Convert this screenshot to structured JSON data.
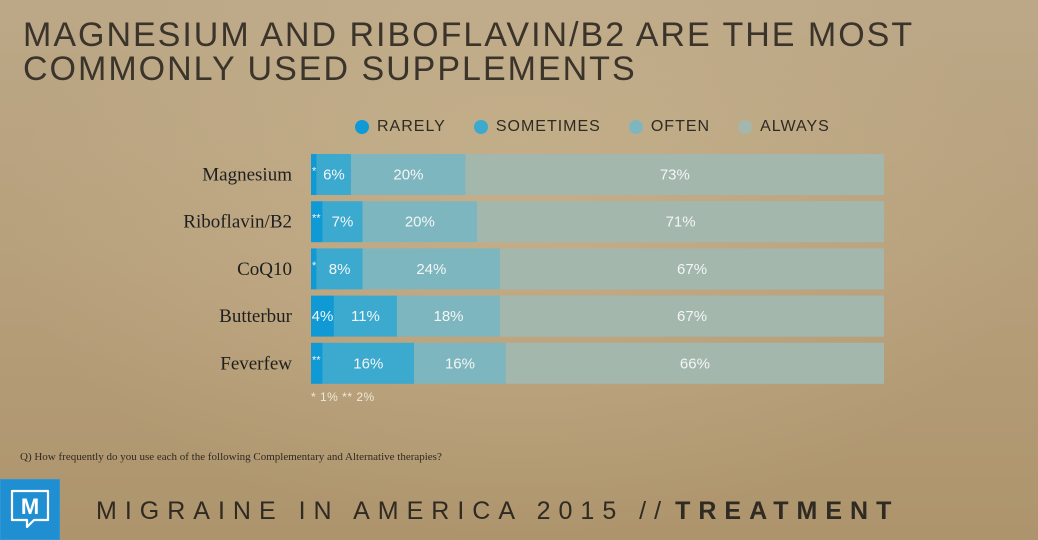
{
  "title": {
    "line1": "MAGNESIUM AND RIBOFLAVIN/B2 ARE THE MOST",
    "line2": "COMMONLY USED SUPPLEMENTS"
  },
  "colors": {
    "rarely": "#0f9ad6",
    "sometimes": "#3ca9cf",
    "often": "#7eb6bf",
    "always": "#a3b7ad",
    "category_text": "#1f1f1f",
    "value_text": "#f3f6f6"
  },
  "chart_data": {
    "type": "bar",
    "orientation": "horizontal",
    "stacked": true,
    "categories": [
      "Magnesium",
      "Riboflavin/B2",
      "CoQ10",
      "Butterbur",
      "Feverfew"
    ],
    "series": [
      {
        "name": "RARELY",
        "values": [
          1,
          2,
          1,
          4,
          2
        ],
        "labels": [
          "*",
          "**",
          "*",
          "4%",
          "**"
        ]
      },
      {
        "name": "SOMETIMES",
        "values": [
          6,
          7,
          8,
          11,
          16
        ],
        "labels": [
          "6%",
          "7%",
          "8%",
          "11%",
          "16%"
        ]
      },
      {
        "name": "OFTEN",
        "values": [
          20,
          20,
          24,
          18,
          16
        ],
        "labels": [
          "20%",
          "20%",
          "24%",
          "18%",
          "16%"
        ]
      },
      {
        "name": "ALWAYS",
        "values": [
          73,
          71,
          67,
          67,
          66
        ],
        "labels": [
          "73%",
          "71%",
          "67%",
          "67%",
          "66%"
        ]
      }
    ],
    "xlim": [
      0,
      100
    ],
    "legend_position": "top",
    "grid": false
  },
  "footnote": "* 1%   ** 2%",
  "question": "Q) How frequently do you use each of the following Complementary and Alternative therapies?",
  "footer": {
    "light": "MIGRAINE IN AMERICA 2015 //",
    "heavy": "TREATMENT"
  },
  "logo": {
    "letter": "M",
    "icon": "speech-bubble-m-icon"
  }
}
